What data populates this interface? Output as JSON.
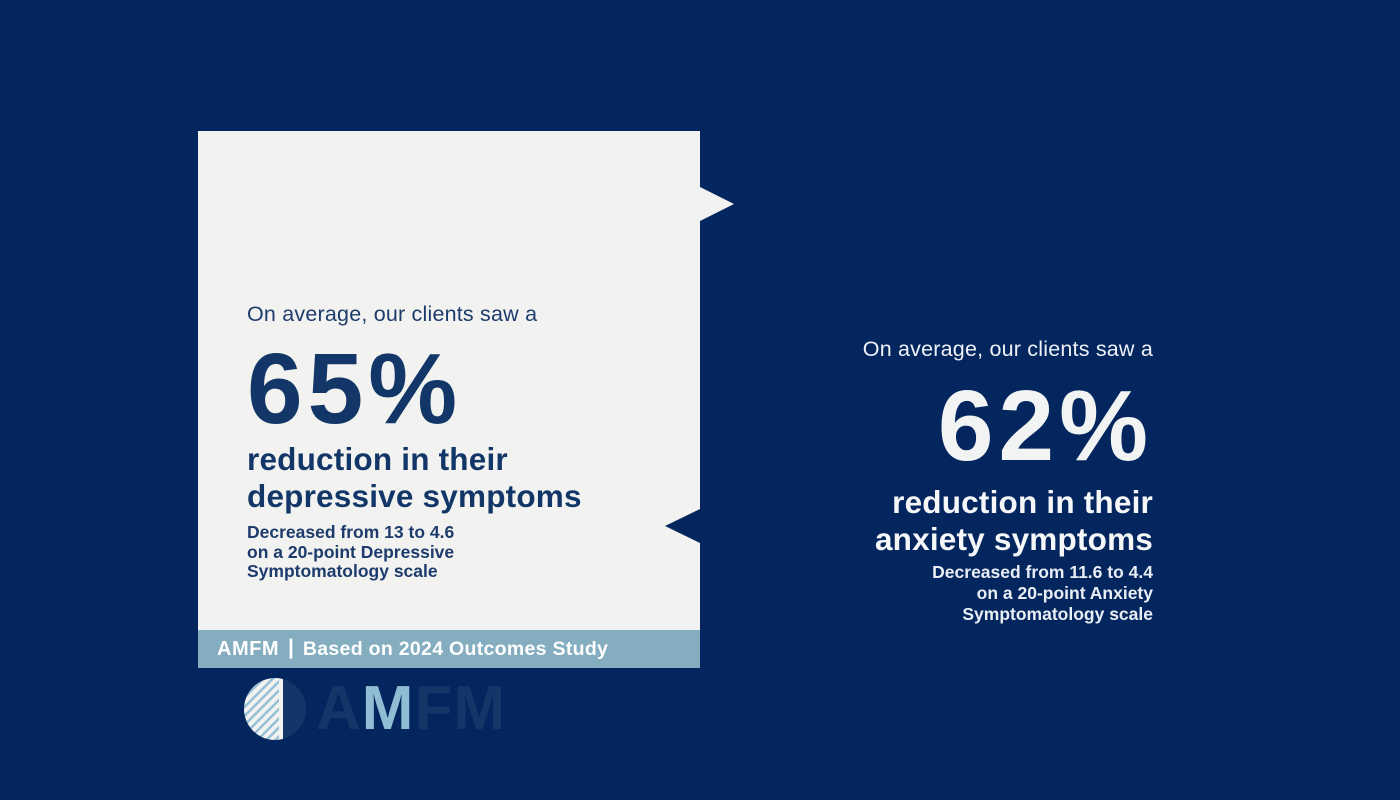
{
  "colors": {
    "background_navy": "#04265f",
    "card_background": "#f2f3f0",
    "navy_text": "#133668",
    "light_blue": "#8fbdd3",
    "footer_bar": "#84adc0",
    "white_text": "#f1f4f6"
  },
  "card": {
    "intro": "On average, our clients saw a",
    "big_number": "65%",
    "headline_line1": "reduction in their",
    "headline_line2": "depressive symptoms",
    "sub": {
      "p1": "Decreased from ",
      "n1": "13",
      "p2": " to ",
      "n2": "4.6",
      "line2": "on a 20-point Depressive",
      "line3": "Symptomatology scale"
    }
  },
  "logo": {
    "letter1": "A",
    "letter2": "M",
    "letter3": "F",
    "letter4": "M"
  },
  "footer": {
    "brand": "AMFM",
    "separator": "|",
    "text": "Based on 2024 Outcomes Study"
  },
  "right": {
    "intro": "On average, our clients saw a",
    "big_number": "62%",
    "headline_line1": "reduction in their",
    "headline_line2": "anxiety symptoms",
    "sub": {
      "p1": "Decreased from ",
      "n1": "11.6",
      "p2": " to ",
      "n2": "4.4",
      "line2": "on a 20-point Anxiety",
      "line3": "Symptomatology scale"
    }
  }
}
